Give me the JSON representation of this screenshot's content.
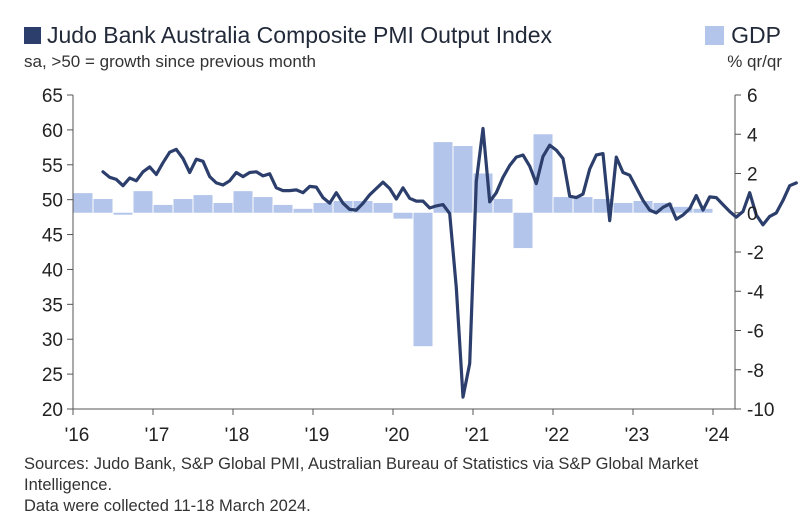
{
  "colors": {
    "pmi_line": "#2c3e6b",
    "gdp_bar": "#b3c5ea",
    "axis": "#555555"
  },
  "header": {
    "title": "Judo Bank Australia Composite PMI Output Index",
    "subtitle": "sa, >50 = growth since previous month",
    "right_legend": "GDP",
    "right_units": "% qr/qr"
  },
  "footer": {
    "sources": "Sources: Judo Bank, S&P Global PMI, Australian Bureau of Statistics via S&P Global Market Intelligence.",
    "collected": "Data were collected 11-18 March 2024."
  },
  "chart_data": {
    "type": "line+bar",
    "title": "Judo Bank Australia Composite PMI Output Index",
    "subtitle": "sa, >50 = growth since previous month",
    "x_ticks": [
      "'16",
      "'17",
      "'18",
      "'19",
      "'20",
      "'21",
      "'22",
      "'23",
      "'24"
    ],
    "left_axis": {
      "ticks": [
        "65",
        "60",
        "55",
        "50",
        "45",
        "40",
        "35",
        "30",
        "25",
        "20"
      ],
      "ylim": [
        20,
        65
      ]
    },
    "right_axis": {
      "ticks": [
        "6",
        "4",
        "2",
        "0",
        "-2",
        "-4",
        "-6",
        "-8",
        "-10"
      ],
      "ylim": [
        -10,
        6
      ]
    },
    "series": [
      {
        "name": "Judo Bank Australia Composite PMI Output Index",
        "axis": "left",
        "kind": "line",
        "start": "2016-05",
        "values": [
          54.0,
          53.2,
          52.9,
          52.0,
          53.1,
          52.7,
          54.0,
          54.7,
          53.6,
          55.3,
          56.8,
          57.2,
          55.9,
          53.9,
          55.8,
          55.5,
          53.3,
          52.4,
          52.1,
          52.7,
          53.9,
          53.3,
          53.9,
          54.0,
          53.4,
          53.7,
          51.7,
          51.3,
          51.3,
          51.4,
          51.0,
          51.9,
          51.8,
          50.3,
          49.5,
          51.0,
          49.5,
          48.6,
          48.5,
          49.5,
          50.7,
          51.6,
          52.5,
          51.6,
          50.1,
          51.7,
          50.2,
          49.8,
          49.8,
          48.8,
          49.1,
          49.3,
          48.0,
          37.4,
          21.7,
          26.5,
          52.6,
          60.2,
          49.7,
          51.0,
          53.2,
          54.9,
          56.1,
          56.4,
          54.8,
          52.3,
          56.2,
          57.8,
          57.1,
          55.9,
          50.5,
          50.3,
          50.8,
          54.4,
          56.4,
          56.6,
          47.0,
          56.1,
          53.9,
          53.5,
          51.7,
          49.9,
          48.5,
          48.1,
          48.9,
          49.4,
          47.2,
          47.8,
          48.7,
          50.6,
          48.5,
          50.4,
          50.3,
          49.3,
          48.3,
          47.5,
          48.3,
          51.0,
          47.8,
          46.4,
          47.6,
          48.1,
          49.9,
          52.0,
          52.4
        ]
      },
      {
        "name": "GDP",
        "axis": "right",
        "kind": "bar",
        "categories": [
          "2016-Q1",
          "2016-Q2",
          "2016-Q3",
          "2016-Q4",
          "2017-Q1",
          "2017-Q2",
          "2017-Q3",
          "2017-Q4",
          "2018-Q1",
          "2018-Q2",
          "2018-Q3",
          "2018-Q4",
          "2019-Q1",
          "2019-Q2",
          "2019-Q3",
          "2019-Q4",
          "2020-Q1",
          "2020-Q2",
          "2020-Q3",
          "2020-Q4",
          "2021-Q1",
          "2021-Q2",
          "2021-Q3",
          "2021-Q4",
          "2022-Q1",
          "2022-Q2",
          "2022-Q3",
          "2022-Q4",
          "2023-Q1",
          "2023-Q2",
          "2023-Q3",
          "2023-Q4"
        ],
        "values": [
          1.0,
          0.7,
          -0.1,
          1.1,
          0.4,
          0.7,
          0.9,
          0.5,
          1.1,
          0.8,
          0.4,
          0.2,
          0.5,
          0.6,
          0.6,
          0.5,
          -0.3,
          -6.8,
          3.6,
          3.4,
          2.0,
          0.7,
          -1.8,
          4.0,
          0.8,
          0.8,
          0.7,
          0.5,
          0.6,
          0.5,
          0.3,
          0.2
        ]
      }
    ],
    "grid": false,
    "legend": "top"
  }
}
